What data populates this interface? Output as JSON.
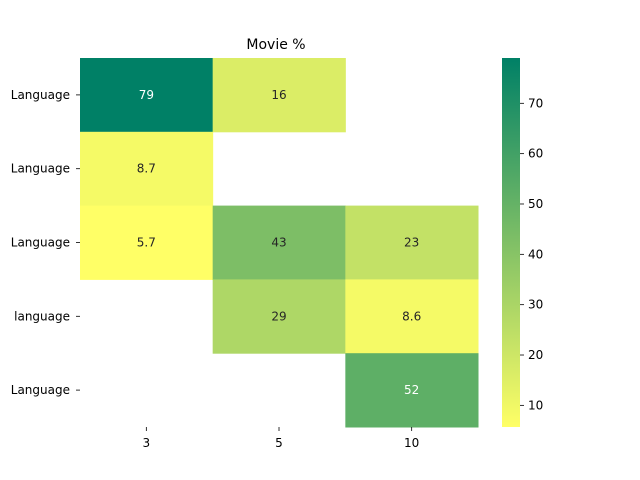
{
  "chart_data": {
    "type": "heatmap",
    "title": "Movie %",
    "xlabel": "",
    "ylabel": "",
    "x_categories": [
      "3",
      "5",
      "10"
    ],
    "y_categories": [
      "Language",
      "Language",
      "Language",
      "language",
      "Language"
    ],
    "values": [
      [
        79,
        16,
        null
      ],
      [
        8.7,
        null,
        null
      ],
      [
        5.7,
        43,
        23
      ],
      [
        null,
        29,
        8.6
      ],
      [
        null,
        null,
        52
      ]
    ],
    "value_labels": [
      [
        "79",
        "16",
        ""
      ],
      [
        "8.7",
        "",
        ""
      ],
      [
        "5.7",
        "43",
        "23"
      ],
      [
        "",
        "29",
        "8.6"
      ],
      [
        "",
        "",
        "52"
      ]
    ],
    "colormap": "summer_r",
    "colormap_stops": [
      "#ffff66",
      "#008066"
    ],
    "vmin": 5.7,
    "vmax": 79,
    "colorbar_ticks": [
      10,
      20,
      30,
      40,
      50,
      60,
      70
    ],
    "grid": false,
    "legend": "colorbar-right"
  }
}
